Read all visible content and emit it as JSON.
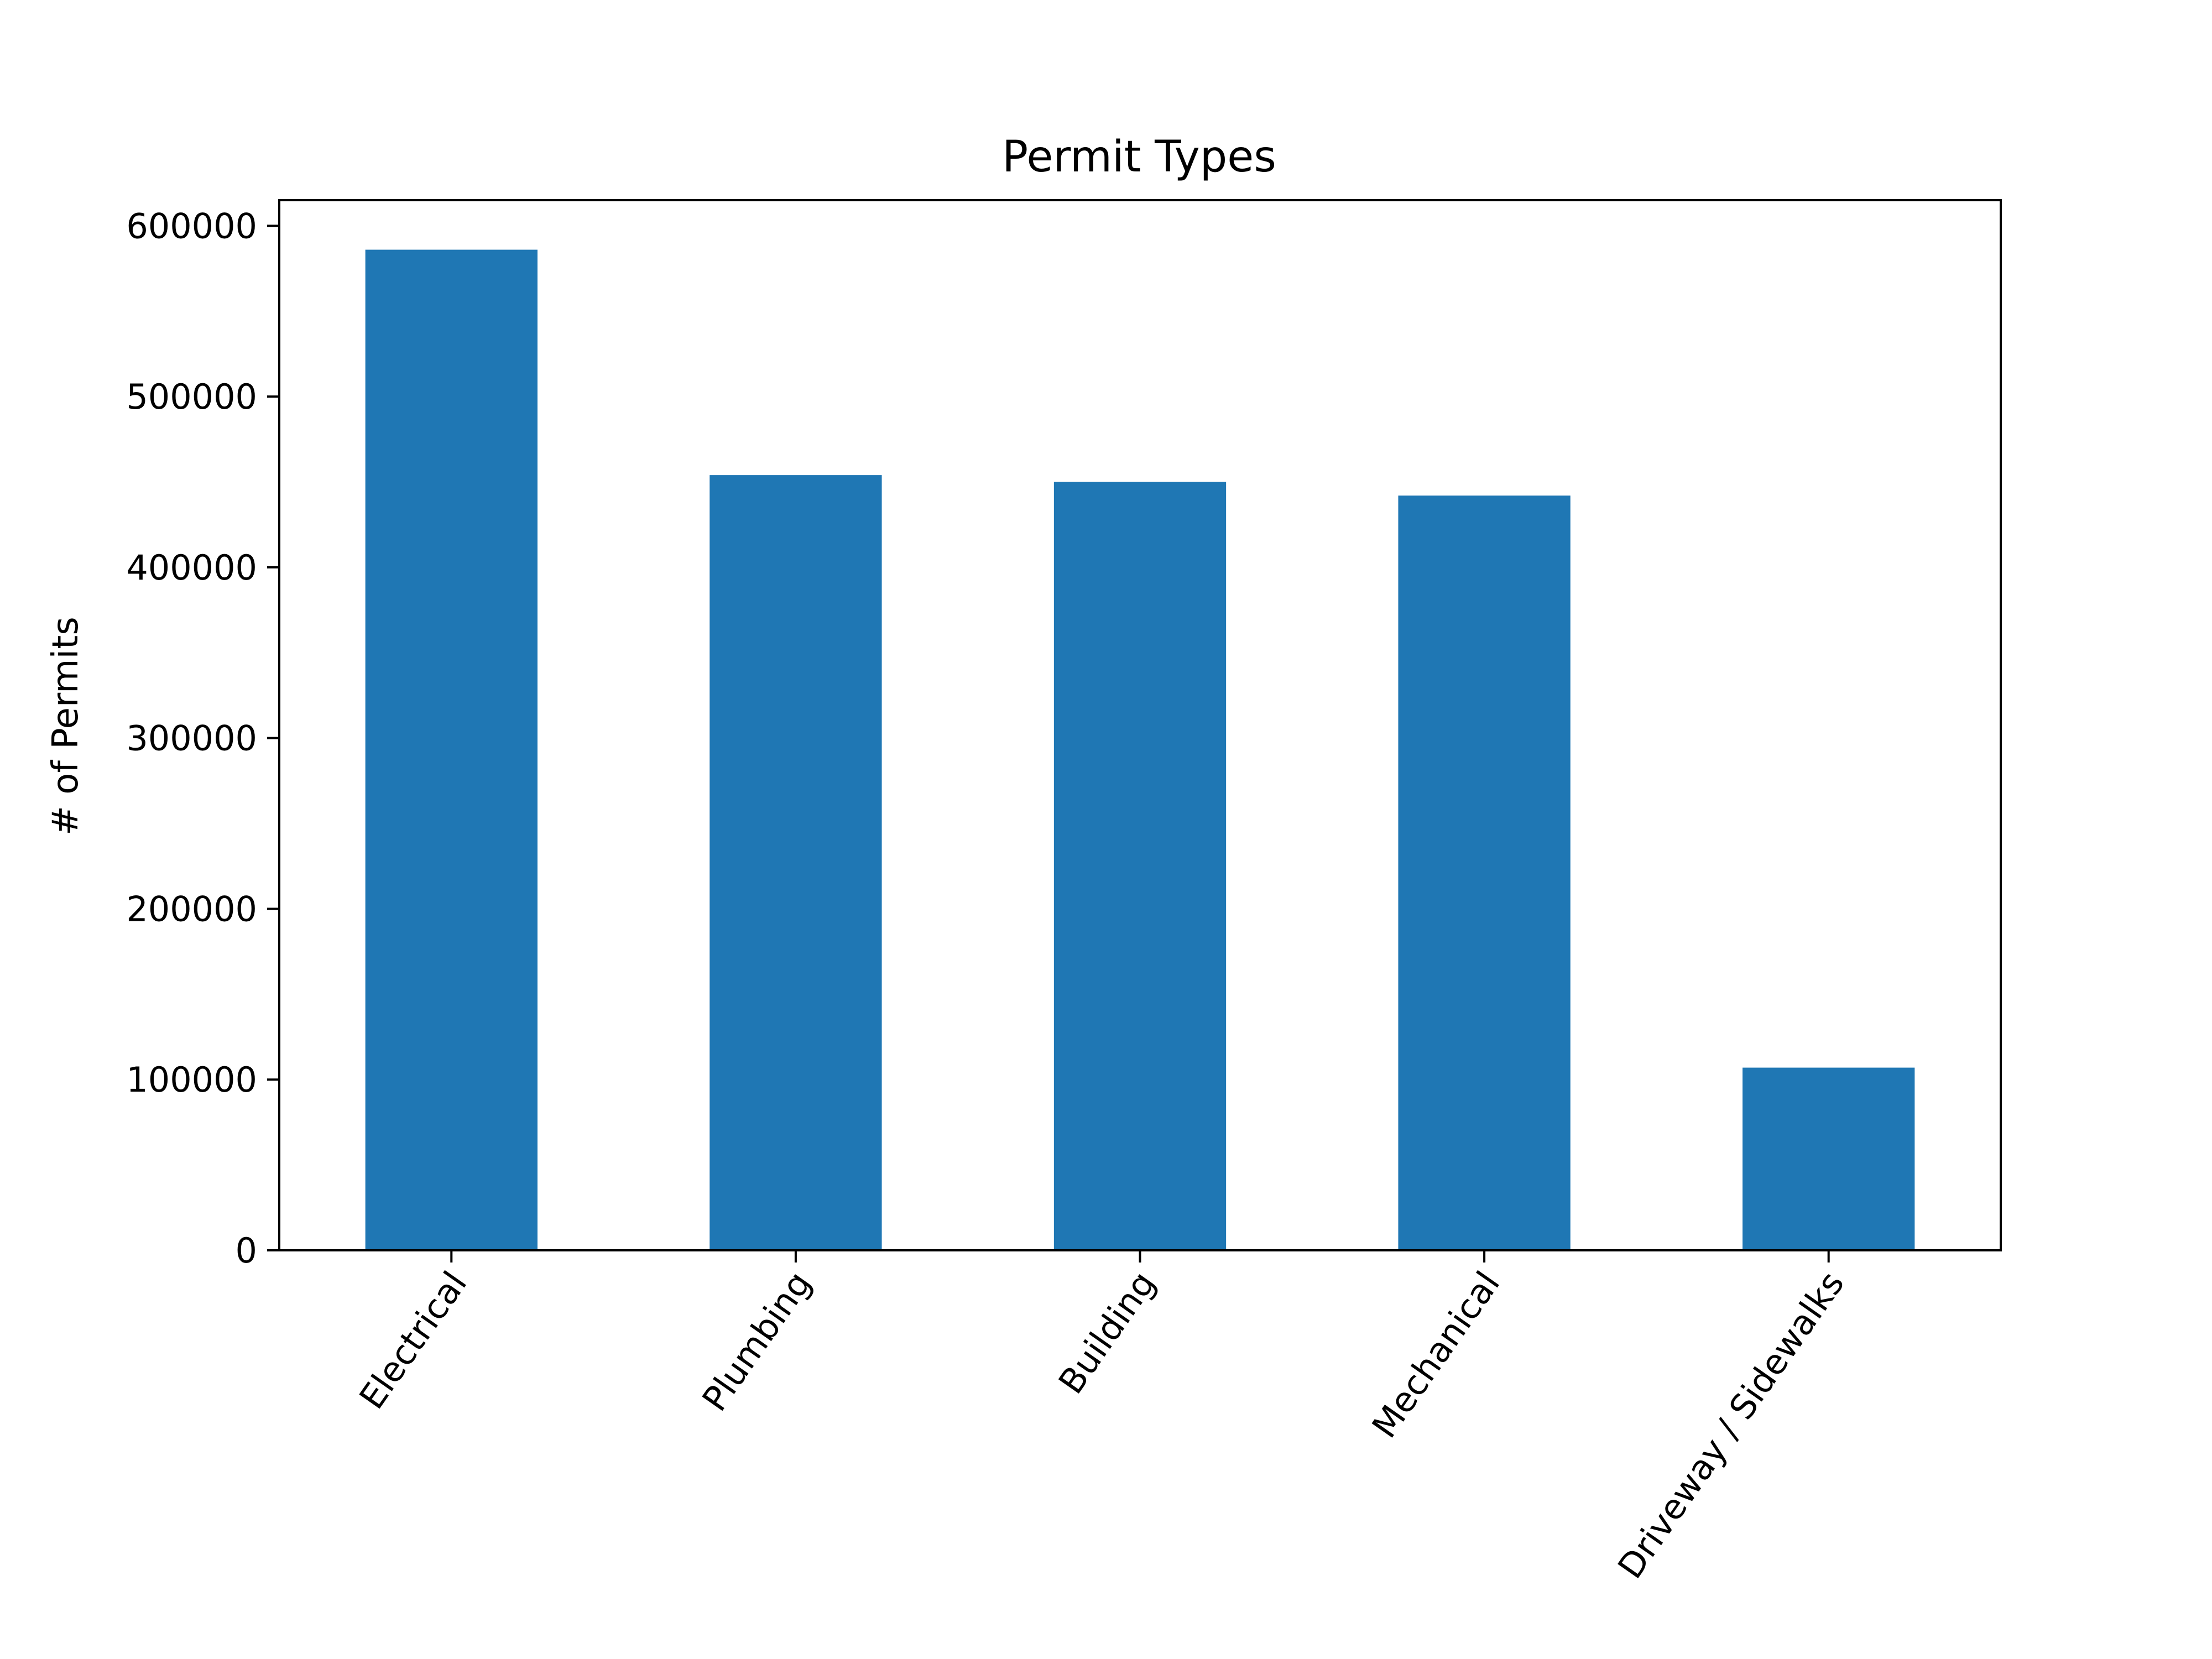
{
  "chart_data": {
    "type": "bar",
    "title": "Permit Types",
    "xlabel": "",
    "ylabel": "# of Permits",
    "categories": [
      "Electrical",
      "Plumbing",
      "Building",
      "Mechanical",
      "Driveway / Sidewalks"
    ],
    "values": [
      586000,
      454000,
      450000,
      442000,
      107000
    ],
    "ylim": [
      0,
      615000
    ],
    "yticks": [
      0,
      100000,
      200000,
      300000,
      400000,
      500000,
      600000
    ],
    "ytick_labels": [
      "0",
      "100000",
      "200000",
      "300000",
      "400000",
      "500000",
      "600000"
    ],
    "bar_color": "#1f77b4",
    "grid": false,
    "legend": "none",
    "x_tick_rotation_deg": 55
  }
}
